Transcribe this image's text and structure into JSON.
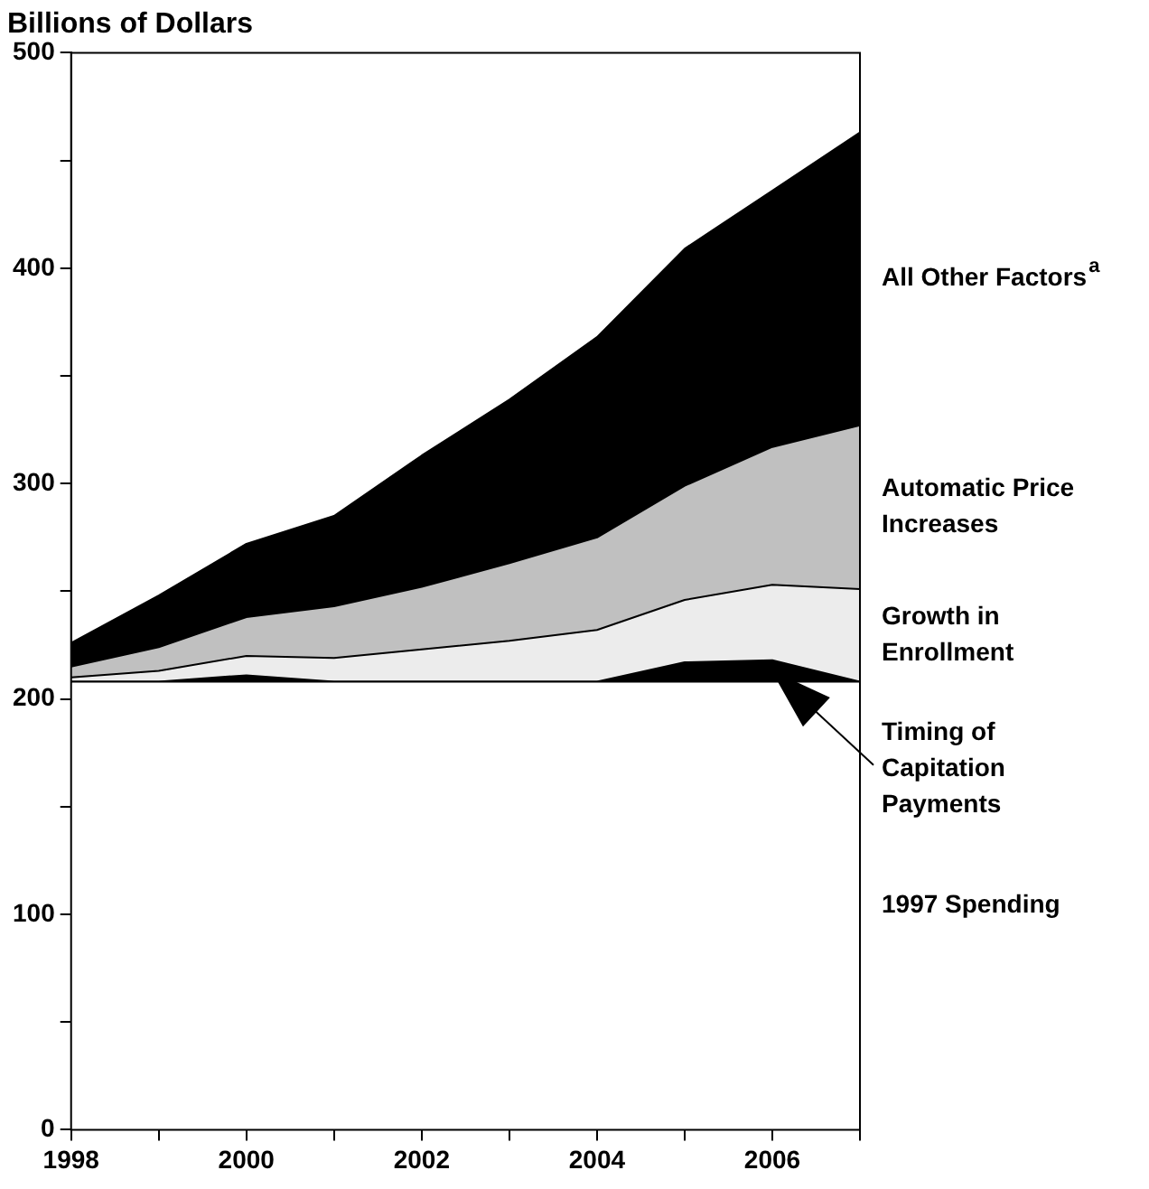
{
  "chart_data": {
    "type": "area",
    "stacked": true,
    "ylabel": "Billions of Dollars",
    "x": [
      1998,
      1999,
      2000,
      2001,
      2002,
      2003,
      2004,
      2005,
      2006,
      2007
    ],
    "xlim": [
      1998,
      2007
    ],
    "xticks": [
      1998,
      {
        "value": 1999,
        "label": null
      },
      2000,
      {
        "value": 2001,
        "label": null
      },
      2002,
      {
        "value": 2003,
        "label": null
      },
      2004,
      {
        "value": 2005,
        "label": null
      },
      2006,
      {
        "value": 2007,
        "label": null
      }
    ],
    "ylim": [
      0,
      500
    ],
    "yticks": [
      0,
      {
        "value": 50,
        "label": null
      },
      100,
      {
        "value": 150,
        "label": null
      },
      200,
      {
        "value": 250,
        "label": null
      },
      300,
      {
        "value": 350,
        "label": null
      },
      400,
      {
        "value": 450,
        "label": null
      },
      500
    ],
    "grid": false,
    "legend": false,
    "series": [
      {
        "name": "1997 Spending",
        "color": "#ffffff",
        "values": [
          208,
          208,
          208,
          208,
          208,
          208,
          208,
          208,
          208,
          208
        ]
      },
      {
        "name": "Timing of Capitation Payments",
        "color": "#000000",
        "values": [
          0,
          0,
          3,
          0,
          0,
          0,
          0,
          9,
          10,
          0
        ]
      },
      {
        "name": "Growth in Enrollment",
        "color": "#ececec",
        "values": [
          2,
          5,
          9,
          11,
          15,
          19,
          24,
          29,
          35,
          43
        ]
      },
      {
        "name": "Automatic Price Increases",
        "color": "#c0c0c0",
        "values": [
          5,
          11,
          18,
          24,
          29,
          36,
          43,
          53,
          64,
          76
        ]
      },
      {
        "name": "All Other Factors$^{a}$",
        "color": "#000000",
        "values": [
          11,
          24,
          34,
          42,
          61,
          76,
          93,
          110,
          119,
          136
        ]
      }
    ]
  }
}
